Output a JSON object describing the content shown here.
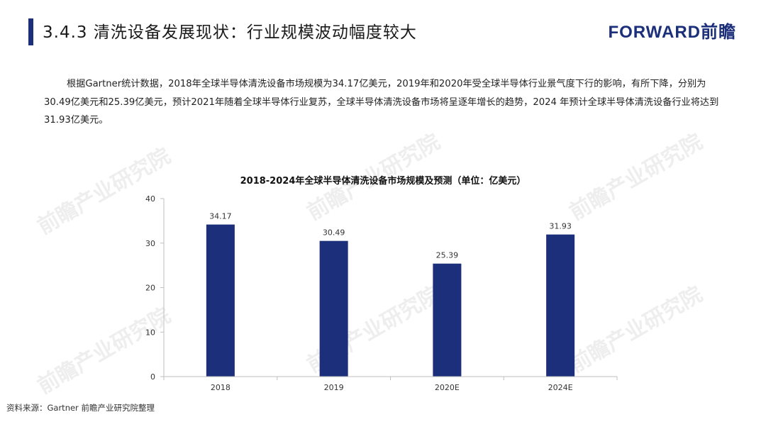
{
  "header": {
    "title": "3.4.3 清洗设备发展现状：行业规模波动幅度较大",
    "logo": "FORWARD前瞻",
    "accent_color": "#1c2f7a"
  },
  "intro": {
    "text": "根据Gartner统计数据，2018年全球半导体清洗设备市场规模为34.17亿美元，2019年和2020年受全球半导体行业景气度下行的影响，有所下降，分别为30.49亿美元和25.39亿美元，预计2021年随着全球半导体行业复苏，全球半导体清洗设备市场将呈逐年增长的趋势，2024 年预计全球半导体清洗设备行业将达到31.93亿美元。"
  },
  "watermark_text": "前瞻产业研究院",
  "chart_data": {
    "type": "bar",
    "title": "2018-2024年全球半导体清洗设备市场规模及预测（单位：亿美元）",
    "categories": [
      "2018",
      "2019",
      "2020E",
      "2024E"
    ],
    "values": [
      34.17,
      30.49,
      25.39,
      31.93
    ],
    "value_labels": [
      "34.17",
      "30.49",
      "25.39",
      "31.93"
    ],
    "y_ticks": [
      "0",
      "10",
      "20",
      "30",
      "40"
    ],
    "ylim": [
      0,
      40
    ],
    "xlabel": "",
    "ylabel": "",
    "grid": false,
    "legend": "none",
    "bar_color": "#1c2f7a"
  },
  "footer": {
    "source": "资料来源：Gartner 前瞻产业研究院整理"
  }
}
